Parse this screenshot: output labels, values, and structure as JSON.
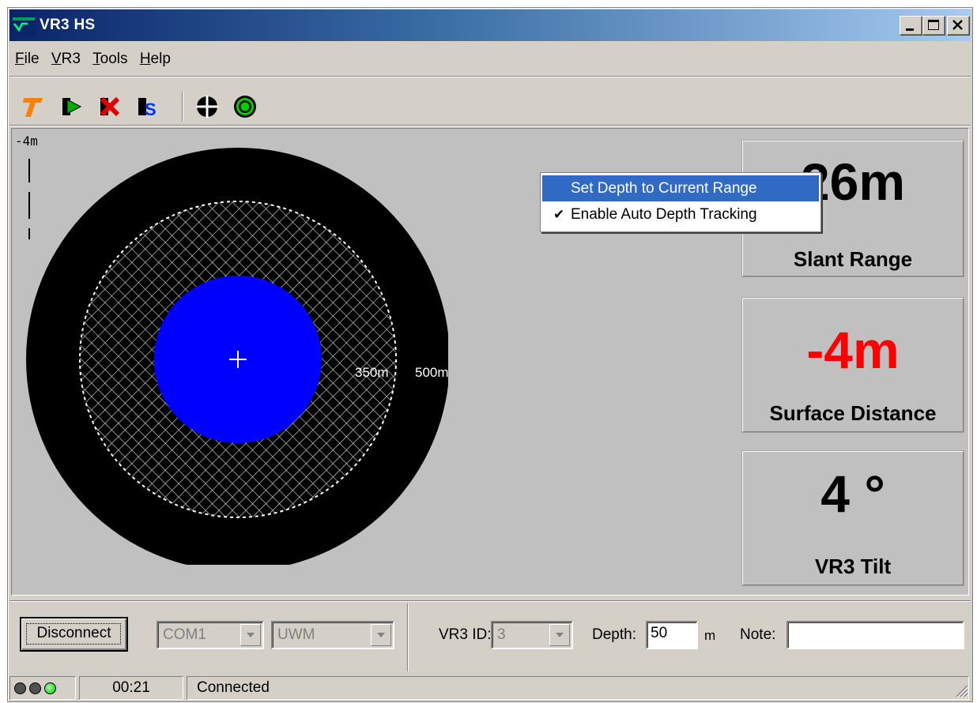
{
  "window": {
    "title": "VR3 HS"
  },
  "menu": [
    {
      "id": "file",
      "label": "File",
      "accel": "F",
      "rest": "ile"
    },
    {
      "id": "vr3",
      "label": "VR3",
      "accel": "V",
      "rest": "R3"
    },
    {
      "id": "tools",
      "label": "Tools",
      "accel": "T",
      "rest": "ools"
    },
    {
      "id": "help",
      "label": "Help",
      "accel": "H",
      "rest": "elp"
    }
  ],
  "toolbar": {
    "icons": [
      "transponder-t-icon",
      "start-icon",
      "stop-icon",
      "settings-s-icon",
      "crosshair-icon",
      "target-icon"
    ]
  },
  "display": {
    "depth_scale_label": "-4m",
    "range_inner_label": "350m",
    "range_outer_label": "500m",
    "colors": {
      "target": "#0000ff",
      "background": "#000000",
      "accent_red": "#ff0000"
    }
  },
  "readouts": {
    "slant_range": {
      "value": "26m",
      "caption": "Slant Range"
    },
    "surface_distance": {
      "value": "-4m",
      "caption": "Surface Distance"
    },
    "tilt": {
      "value": "4 °",
      "caption": "VR3 Tilt"
    }
  },
  "context_menu": {
    "items": [
      {
        "label": "Set Depth to Current Range",
        "checked": false,
        "selected": true
      },
      {
        "label": "Enable Auto Depth Tracking",
        "checked": true,
        "selected": false
      }
    ]
  },
  "controls": {
    "disconnect_label": "Disconnect",
    "port_value": "COM1",
    "protocol_value": "UWM",
    "vr3_id_label": "VR3 ID:",
    "vr3_id_value": "3",
    "depth_label": "Depth:",
    "depth_value": "50",
    "depth_unit": "m",
    "note_label": "Note:",
    "note_value": ""
  },
  "status": {
    "leds": [
      "off",
      "off",
      "on"
    ],
    "elapsed": "00:21",
    "connection": "Connected"
  }
}
